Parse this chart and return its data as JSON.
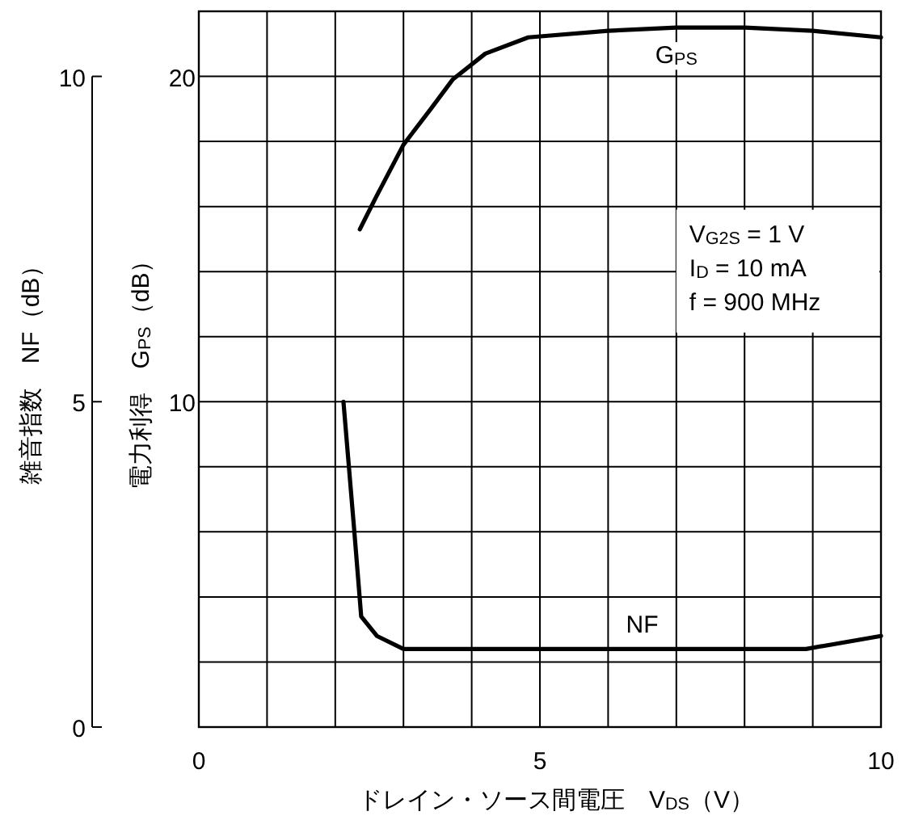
{
  "chart_data": {
    "type": "line",
    "xlabel": "ドレイン・ソース間電圧　V$_{DS}$（V）",
    "ylabel": "雑音指数　NF（dB）",
    "y2label": "電力利得　G$_{PS}$（dB）",
    "xlim": [
      0,
      10
    ],
    "xticks": [
      0,
      {
        "value": 1,
        "label": null
      },
      {
        "value": 2,
        "label": null
      },
      {
        "value": 3,
        "label": null
      },
      {
        "value": 4,
        "label": null
      },
      5,
      {
        "value": 6,
        "label": null
      },
      {
        "value": 7,
        "label": null
      },
      {
        "value": 8,
        "label": null
      },
      {
        "value": 9,
        "label": null
      },
      10
    ],
    "ylim": [
      0,
      11
    ],
    "yticks": [
      0,
      5,
      10
    ],
    "y2lim": [
      0,
      22
    ],
    "y2ticks": [
      {
        "value": 2,
        "label": null
      },
      {
        "value": 4,
        "label": null
      },
      {
        "value": 6,
        "label": null
      },
      {
        "value": 8,
        "label": null
      },
      10,
      {
        "value": 12,
        "label": null
      },
      {
        "value": 14,
        "label": null
      },
      {
        "value": 16,
        "label": null
      },
      {
        "value": 18,
        "label": null
      },
      20
    ],
    "grid": true,
    "line_style": "solid",
    "series": [
      {
        "name": "G$_{PS}$",
        "color": "#000000",
        "axis": "y2",
        "x": [
          2.36,
          2.6,
          3.0,
          3.4,
          3.72,
          4.2,
          4.83,
          6.0,
          7.0,
          8.0,
          9.0,
          10.0
        ],
        "values": [
          15.3,
          16.3,
          17.9,
          19.0,
          19.9,
          20.7,
          21.2,
          21.4,
          21.5,
          21.5,
          21.4,
          21.2
        ]
      },
      {
        "name": "NF",
        "color": "#000000",
        "axis": "y",
        "x": [
          2.12,
          2.28,
          2.38,
          2.61,
          3.0,
          5.0,
          7.0,
          8.9,
          10.0
        ],
        "values": [
          5.0,
          3.0,
          1.7,
          1.4,
          1.2,
          1.2,
          1.2,
          1.2,
          1.4
        ]
      }
    ],
    "annotations": [
      "V$_{G2S}$ = 1 V",
      "I$_{D}$ = 10 mA",
      "f = 900 MHz"
    ]
  }
}
